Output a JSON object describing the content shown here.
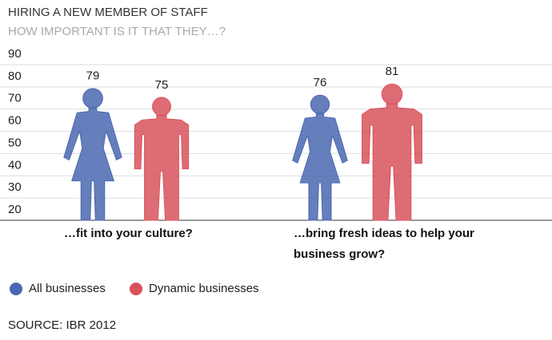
{
  "chart_data": {
    "type": "pictogram",
    "title": "HIRING A NEW MEMBER OF STAFF",
    "subtitle": "HOW IMPORTANT IS IT THAT THEY…?",
    "categories": [
      "…fit into your culture?",
      "…bring fresh ideas to help your business grow?"
    ],
    "series": [
      {
        "name": "All businesses",
        "color": "#4a67b0",
        "values": [
          79,
          76
        ]
      },
      {
        "name": "Dynamic businesses",
        "color": "#d8525c",
        "values": [
          75,
          81
        ]
      }
    ],
    "ylim": [
      20,
      90
    ],
    "yticks": [
      20,
      30,
      40,
      50,
      60,
      70,
      80,
      90
    ],
    "grid": true,
    "source": "SOURCE: IBR 2012"
  }
}
